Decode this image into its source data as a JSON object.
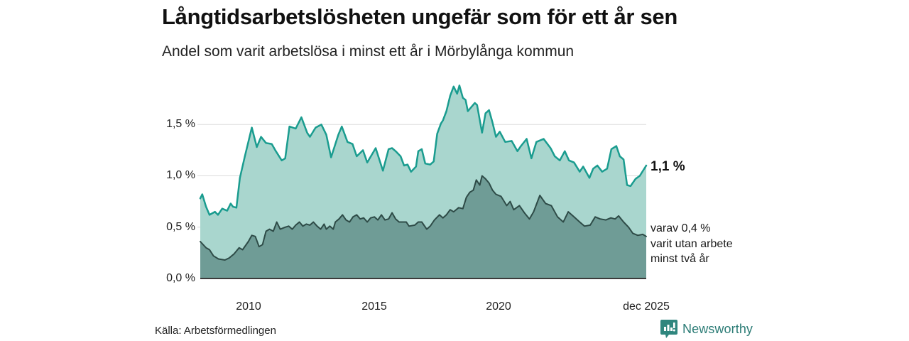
{
  "header": {
    "title": "Långtidsarbetslösheten ungefär som för ett år sen",
    "subtitle": "Andel som varit arbetslösa i minst ett år i Mörbylånga kommun"
  },
  "colors": {
    "series1_line": "#1a9c8f",
    "series1_fill": "#a9d6ce",
    "series2_line": "#2e4b47",
    "series2_fill": "#6f9c96",
    "gridline": "#dcdcdc",
    "axis": "#3b3b3b",
    "brand": "#2c7c76"
  },
  "chart_data": {
    "type": "area",
    "title": "Långtidsarbetslösheten ungefär som för ett år sen",
    "subtitle": "Andel som varit arbetslösa i minst ett år i Mörbylånga kommun",
    "unit": "%",
    "x_range": [
      2008.07,
      2025.97
    ],
    "x_axis": {
      "ticks": [
        "2010",
        "2015",
        "2020",
        "dec 2025"
      ],
      "tick_years": [
        2010,
        2015,
        2020,
        2025.92
      ]
    },
    "y_axis": {
      "ticks": [
        "1,5 %",
        "1,0 %",
        "0,5 %",
        "0,0 %"
      ],
      "tick_values": [
        1.5,
        1.0,
        0.5,
        0.0
      ],
      "range": [
        0,
        1.95
      ],
      "grid": true
    },
    "legend_position": "right-annotations",
    "annotations": {
      "latest_total": "1,1 %",
      "latest_two_years_lines": [
        "varav 0,4 %",
        "varit utan arbete",
        "minst två år"
      ]
    },
    "series": [
      {
        "name": "Andel arbetslösa minst ett år",
        "latest_value": 1.1,
        "points": [
          [
            2008.07,
            0.78
          ],
          [
            2008.15,
            0.82
          ],
          [
            2008.3,
            0.7
          ],
          [
            2008.44,
            0.62
          ],
          [
            2008.66,
            0.65
          ],
          [
            2008.78,
            0.62
          ],
          [
            2008.95,
            0.68
          ],
          [
            2009.15,
            0.66
          ],
          [
            2009.29,
            0.73
          ],
          [
            2009.38,
            0.7
          ],
          [
            2009.52,
            0.69
          ],
          [
            2009.66,
            0.98
          ],
          [
            2009.86,
            1.19
          ],
          [
            2010.14,
            1.47
          ],
          [
            2010.34,
            1.28
          ],
          [
            2010.51,
            1.38
          ],
          [
            2010.71,
            1.32
          ],
          [
            2010.94,
            1.31
          ],
          [
            2011.08,
            1.25
          ],
          [
            2011.34,
            1.15
          ],
          [
            2011.48,
            1.17
          ],
          [
            2011.65,
            1.48
          ],
          [
            2011.9,
            1.46
          ],
          [
            2012.13,
            1.57
          ],
          [
            2012.36,
            1.42
          ],
          [
            2012.47,
            1.38
          ],
          [
            2012.7,
            1.47
          ],
          [
            2012.93,
            1.5
          ],
          [
            2013.13,
            1.4
          ],
          [
            2013.32,
            1.18
          ],
          [
            2013.61,
            1.4
          ],
          [
            2013.75,
            1.48
          ],
          [
            2013.98,
            1.33
          ],
          [
            2014.18,
            1.31
          ],
          [
            2014.35,
            1.19
          ],
          [
            2014.6,
            1.25
          ],
          [
            2014.77,
            1.13
          ],
          [
            2015.11,
            1.27
          ],
          [
            2015.4,
            1.05
          ],
          [
            2015.63,
            1.26
          ],
          [
            2015.77,
            1.27
          ],
          [
            2015.91,
            1.24
          ],
          [
            2016.11,
            1.19
          ],
          [
            2016.25,
            1.1
          ],
          [
            2016.39,
            1.11
          ],
          [
            2016.53,
            1.04
          ],
          [
            2016.73,
            1.09
          ],
          [
            2016.82,
            1.24
          ],
          [
            2016.96,
            1.26
          ],
          [
            2017.1,
            1.12
          ],
          [
            2017.3,
            1.11
          ],
          [
            2017.44,
            1.14
          ],
          [
            2017.58,
            1.41
          ],
          [
            2017.73,
            1.51
          ],
          [
            2017.81,
            1.54
          ],
          [
            2017.95,
            1.63
          ],
          [
            2018.1,
            1.78
          ],
          [
            2018.24,
            1.87
          ],
          [
            2018.38,
            1.8
          ],
          [
            2018.47,
            1.88
          ],
          [
            2018.61,
            1.76
          ],
          [
            2018.72,
            1.74
          ],
          [
            2018.81,
            1.63
          ],
          [
            2018.95,
            1.67
          ],
          [
            2019.09,
            1.71
          ],
          [
            2019.18,
            1.69
          ],
          [
            2019.38,
            1.42
          ],
          [
            2019.52,
            1.61
          ],
          [
            2019.66,
            1.64
          ],
          [
            2019.8,
            1.52
          ],
          [
            2019.94,
            1.38
          ],
          [
            2020.09,
            1.43
          ],
          [
            2020.31,
            1.33
          ],
          [
            2020.57,
            1.34
          ],
          [
            2020.8,
            1.24
          ],
          [
            2020.94,
            1.29
          ],
          [
            2021.17,
            1.36
          ],
          [
            2021.36,
            1.17
          ],
          [
            2021.56,
            1.33
          ],
          [
            2021.85,
            1.36
          ],
          [
            2022.13,
            1.27
          ],
          [
            2022.3,
            1.19
          ],
          [
            2022.5,
            1.15
          ],
          [
            2022.7,
            1.24
          ],
          [
            2022.87,
            1.15
          ],
          [
            2023.07,
            1.13
          ],
          [
            2023.3,
            1.04
          ],
          [
            2023.44,
            1.09
          ],
          [
            2023.69,
            0.98
          ],
          [
            2023.84,
            1.07
          ],
          [
            2024.01,
            1.1
          ],
          [
            2024.2,
            1.04
          ],
          [
            2024.4,
            1.07
          ],
          [
            2024.57,
            1.26
          ],
          [
            2024.77,
            1.29
          ],
          [
            2024.91,
            1.19
          ],
          [
            2025.06,
            1.16
          ],
          [
            2025.2,
            0.91
          ],
          [
            2025.34,
            0.9
          ],
          [
            2025.54,
            0.97
          ],
          [
            2025.71,
            1.0
          ],
          [
            2025.97,
            1.1
          ]
        ]
      },
      {
        "name": "varav utan arbete minst två år",
        "latest_value": 0.4,
        "points": [
          [
            2008.07,
            0.36
          ],
          [
            2008.3,
            0.3
          ],
          [
            2008.44,
            0.28
          ],
          [
            2008.6,
            0.22
          ],
          [
            2008.8,
            0.19
          ],
          [
            2009.06,
            0.18
          ],
          [
            2009.23,
            0.2
          ],
          [
            2009.43,
            0.24
          ],
          [
            2009.63,
            0.3
          ],
          [
            2009.77,
            0.28
          ],
          [
            2010.0,
            0.36
          ],
          [
            2010.14,
            0.42
          ],
          [
            2010.28,
            0.41
          ],
          [
            2010.43,
            0.31
          ],
          [
            2010.57,
            0.33
          ],
          [
            2010.71,
            0.46
          ],
          [
            2010.85,
            0.48
          ],
          [
            2011.0,
            0.46
          ],
          [
            2011.14,
            0.55
          ],
          [
            2011.28,
            0.48
          ],
          [
            2011.48,
            0.5
          ],
          [
            2011.62,
            0.51
          ],
          [
            2011.76,
            0.48
          ],
          [
            2011.9,
            0.52
          ],
          [
            2012.05,
            0.55
          ],
          [
            2012.19,
            0.51
          ],
          [
            2012.33,
            0.53
          ],
          [
            2012.47,
            0.52
          ],
          [
            2012.61,
            0.55
          ],
          [
            2012.76,
            0.51
          ],
          [
            2012.9,
            0.48
          ],
          [
            2013.04,
            0.53
          ],
          [
            2013.13,
            0.48
          ],
          [
            2013.27,
            0.51
          ],
          [
            2013.41,
            0.48
          ],
          [
            2013.49,
            0.55
          ],
          [
            2013.64,
            0.58
          ],
          [
            2013.78,
            0.62
          ],
          [
            2013.92,
            0.57
          ],
          [
            2014.06,
            0.55
          ],
          [
            2014.2,
            0.6
          ],
          [
            2014.35,
            0.62
          ],
          [
            2014.49,
            0.58
          ],
          [
            2014.63,
            0.59
          ],
          [
            2014.77,
            0.55
          ],
          [
            2014.91,
            0.59
          ],
          [
            2015.06,
            0.6
          ],
          [
            2015.2,
            0.57
          ],
          [
            2015.34,
            0.62
          ],
          [
            2015.48,
            0.57
          ],
          [
            2015.63,
            0.58
          ],
          [
            2015.77,
            0.64
          ],
          [
            2015.91,
            0.58
          ],
          [
            2016.05,
            0.55
          ],
          [
            2016.34,
            0.55
          ],
          [
            2016.45,
            0.51
          ],
          [
            2016.68,
            0.52
          ],
          [
            2016.82,
            0.55
          ],
          [
            2016.96,
            0.55
          ],
          [
            2017.16,
            0.48
          ],
          [
            2017.3,
            0.51
          ],
          [
            2017.47,
            0.57
          ],
          [
            2017.67,
            0.62
          ],
          [
            2017.81,
            0.59
          ],
          [
            2017.95,
            0.62
          ],
          [
            2018.1,
            0.67
          ],
          [
            2018.24,
            0.65
          ],
          [
            2018.44,
            0.69
          ],
          [
            2018.61,
            0.68
          ],
          [
            2018.75,
            0.79
          ],
          [
            2018.89,
            0.84
          ],
          [
            2019.03,
            0.86
          ],
          [
            2019.15,
            0.96
          ],
          [
            2019.29,
            0.91
          ],
          [
            2019.38,
            1.0
          ],
          [
            2019.52,
            0.97
          ],
          [
            2019.66,
            0.93
          ],
          [
            2019.8,
            0.86
          ],
          [
            2019.94,
            0.82
          ],
          [
            2020.14,
            0.8
          ],
          [
            2020.37,
            0.71
          ],
          [
            2020.51,
            0.75
          ],
          [
            2020.65,
            0.67
          ],
          [
            2020.88,
            0.71
          ],
          [
            2021.08,
            0.64
          ],
          [
            2021.28,
            0.58
          ],
          [
            2021.45,
            0.65
          ],
          [
            2021.7,
            0.81
          ],
          [
            2021.93,
            0.73
          ],
          [
            2022.16,
            0.71
          ],
          [
            2022.41,
            0.6
          ],
          [
            2022.64,
            0.55
          ],
          [
            2022.84,
            0.65
          ],
          [
            2023.07,
            0.6
          ],
          [
            2023.3,
            0.55
          ],
          [
            2023.49,
            0.51
          ],
          [
            2023.72,
            0.52
          ],
          [
            2023.92,
            0.6
          ],
          [
            2024.12,
            0.58
          ],
          [
            2024.35,
            0.57
          ],
          [
            2024.55,
            0.59
          ],
          [
            2024.72,
            0.58
          ],
          [
            2024.86,
            0.61
          ],
          [
            2025.06,
            0.55
          ],
          [
            2025.26,
            0.5
          ],
          [
            2025.43,
            0.44
          ],
          [
            2025.63,
            0.42
          ],
          [
            2025.83,
            0.43
          ],
          [
            2025.97,
            0.41
          ]
        ]
      }
    ]
  },
  "footer": {
    "source": "Källa: Arbetsförmedlingen",
    "brand": "Newsworthy"
  }
}
